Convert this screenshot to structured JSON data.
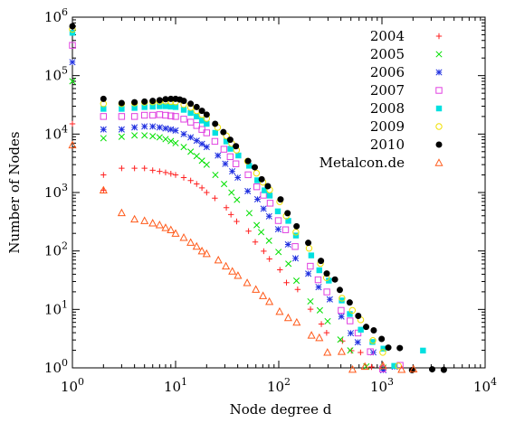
{
  "chart_data": {
    "type": "scatter",
    "title": "",
    "xlabel": "Node degree d",
    "ylabel": "Number of Nodes",
    "xscale": "log",
    "yscale": "log",
    "xlim": [
      1,
      10000
    ],
    "ylim": [
      1,
      1000000
    ],
    "x_ticks": [
      {
        "base": "10",
        "exp": "0"
      },
      {
        "base": "10",
        "exp": "1"
      },
      {
        "base": "10",
        "exp": "2"
      },
      {
        "base": "10",
        "exp": "3"
      },
      {
        "base": "10",
        "exp": "4"
      }
    ],
    "y_ticks": [
      {
        "base": "10",
        "exp": "0"
      },
      {
        "base": "10",
        "exp": "1"
      },
      {
        "base": "10",
        "exp": "2"
      },
      {
        "base": "10",
        "exp": "3"
      },
      {
        "base": "10",
        "exp": "4"
      },
      {
        "base": "10",
        "exp": "5"
      },
      {
        "base": "10",
        "exp": "6"
      }
    ],
    "legend_position": "top-right",
    "series": [
      {
        "name": "2004",
        "color": "#ff2020",
        "marker": "plus",
        "points": [
          [
            1,
            15000
          ],
          [
            2,
            2000
          ],
          [
            2,
            1100
          ],
          [
            3,
            2600
          ],
          [
            4,
            2600
          ],
          [
            5,
            2600
          ],
          [
            6,
            2400
          ],
          [
            7,
            2300
          ],
          [
            8,
            2200
          ],
          [
            9,
            2100
          ],
          [
            10,
            2000
          ],
          [
            12,
            1800
          ],
          [
            14,
            1600
          ],
          [
            16,
            1400
          ],
          [
            18,
            1200
          ],
          [
            20,
            1000
          ],
          [
            25,
            800
          ],
          [
            30,
            550
          ],
          [
            35,
            420
          ],
          [
            40,
            320
          ],
          [
            50,
            220
          ],
          [
            60,
            150
          ],
          [
            70,
            100
          ],
          [
            80,
            75
          ],
          [
            100,
            45
          ],
          [
            120,
            30
          ],
          [
            150,
            20
          ],
          [
            200,
            10
          ],
          [
            250,
            6
          ],
          [
            300,
            4
          ],
          [
            400,
            3
          ],
          [
            500,
            2
          ],
          [
            600,
            2
          ],
          [
            800,
            1
          ],
          [
            1000,
            1
          ]
        ]
      },
      {
        "name": "2005",
        "color": "#00e000",
        "marker": "cross",
        "points": [
          [
            1,
            80000
          ],
          [
            2,
            8500
          ],
          [
            3,
            9000
          ],
          [
            4,
            9500
          ],
          [
            5,
            9500
          ],
          [
            6,
            9200
          ],
          [
            7,
            8800
          ],
          [
            8,
            8200
          ],
          [
            9,
            7600
          ],
          [
            10,
            7000
          ],
          [
            12,
            6000
          ],
          [
            14,
            5000
          ],
          [
            16,
            4200
          ],
          [
            18,
            3500
          ],
          [
            20,
            3000
          ],
          [
            25,
            2000
          ],
          [
            30,
            1400
          ],
          [
            35,
            1000
          ],
          [
            40,
            750
          ],
          [
            50,
            450
          ],
          [
            60,
            300
          ],
          [
            70,
            200
          ],
          [
            80,
            150
          ],
          [
            100,
            90
          ],
          [
            120,
            55
          ],
          [
            150,
            30
          ],
          [
            200,
            15
          ],
          [
            250,
            9
          ],
          [
            300,
            6
          ],
          [
            400,
            3
          ],
          [
            500,
            2
          ],
          [
            700,
            1
          ],
          [
            1000,
            1
          ]
        ]
      },
      {
        "name": "2006",
        "color": "#2030e0",
        "marker": "star",
        "points": [
          [
            1,
            170000
          ],
          [
            2,
            12000
          ],
          [
            3,
            12000
          ],
          [
            4,
            13000
          ],
          [
            5,
            13500
          ],
          [
            6,
            13500
          ],
          [
            7,
            13000
          ],
          [
            8,
            12500
          ],
          [
            9,
            12000
          ],
          [
            10,
            11500
          ],
          [
            12,
            10000
          ],
          [
            14,
            8800
          ],
          [
            16,
            7700
          ],
          [
            18,
            6800
          ],
          [
            20,
            6000
          ],
          [
            25,
            4300
          ],
          [
            30,
            3100
          ],
          [
            35,
            2300
          ],
          [
            40,
            1800
          ],
          [
            50,
            1100
          ],
          [
            60,
            750
          ],
          [
            70,
            500
          ],
          [
            80,
            380
          ],
          [
            100,
            230
          ],
          [
            120,
            140
          ],
          [
            150,
            80
          ],
          [
            200,
            40
          ],
          [
            250,
            22
          ],
          [
            300,
            14
          ],
          [
            400,
            7
          ],
          [
            500,
            4
          ],
          [
            600,
            3
          ],
          [
            800,
            2
          ],
          [
            1000,
            1
          ],
          [
            1300,
            1
          ]
        ]
      },
      {
        "name": "2007",
        "color": "#e040e0",
        "marker": "square",
        "points": [
          [
            1,
            330000
          ],
          [
            2,
            20000
          ],
          [
            3,
            20000
          ],
          [
            4,
            20000
          ],
          [
            5,
            21000
          ],
          [
            6,
            21000
          ],
          [
            7,
            21500
          ],
          [
            8,
            21000
          ],
          [
            9,
            20500
          ],
          [
            10,
            20000
          ],
          [
            12,
            18000
          ],
          [
            14,
            16000
          ],
          [
            16,
            14000
          ],
          [
            18,
            12000
          ],
          [
            20,
            10500
          ],
          [
            25,
            7500
          ],
          [
            30,
            5500
          ],
          [
            35,
            4100
          ],
          [
            40,
            3100
          ],
          [
            50,
            1900
          ],
          [
            60,
            1250
          ],
          [
            70,
            850
          ],
          [
            80,
            620
          ],
          [
            100,
            360
          ],
          [
            120,
            230
          ],
          [
            150,
            130
          ],
          [
            200,
            60
          ],
          [
            250,
            35
          ],
          [
            300,
            22
          ],
          [
            400,
            10
          ],
          [
            500,
            6
          ],
          [
            600,
            4
          ],
          [
            800,
            2
          ],
          [
            1000,
            1
          ],
          [
            1500,
            1
          ]
        ]
      },
      {
        "name": "2008",
        "color": "#00e0e0",
        "marker": "filled-square",
        "points": [
          [
            1,
            540000
          ],
          [
            2,
            27000
          ],
          [
            3,
            27000
          ],
          [
            4,
            28000
          ],
          [
            5,
            29000
          ],
          [
            6,
            29500
          ],
          [
            7,
            30000
          ],
          [
            8,
            30000
          ],
          [
            9,
            29500
          ],
          [
            10,
            29000
          ],
          [
            12,
            26000
          ],
          [
            14,
            23000
          ],
          [
            16,
            20000
          ],
          [
            18,
            17000
          ],
          [
            20,
            15000
          ],
          [
            25,
            10500
          ],
          [
            30,
            7500
          ],
          [
            35,
            5600
          ],
          [
            40,
            4300
          ],
          [
            50,
            2600
          ],
          [
            60,
            1750
          ],
          [
            70,
            1200
          ],
          [
            80,
            870
          ],
          [
            100,
            500
          ],
          [
            120,
            320
          ],
          [
            150,
            180
          ],
          [
            200,
            85
          ],
          [
            250,
            48
          ],
          [
            300,
            30
          ],
          [
            400,
            14
          ],
          [
            500,
            8
          ],
          [
            600,
            5
          ],
          [
            800,
            3
          ],
          [
            1000,
            2
          ],
          [
            1300,
            1
          ],
          [
            2500,
            2
          ]
        ]
      },
      {
        "name": "2009",
        "color": "#f0e000",
        "marker": "circle",
        "points": [
          [
            1,
            620000
          ],
          [
            2,
            33000
          ],
          [
            3,
            33000
          ],
          [
            4,
            34000
          ],
          [
            5,
            35000
          ],
          [
            6,
            35500
          ],
          [
            7,
            36000
          ],
          [
            8,
            36500
          ],
          [
            9,
            36000
          ],
          [
            10,
            35500
          ],
          [
            12,
            32000
          ],
          [
            14,
            28500
          ],
          [
            16,
            25000
          ],
          [
            18,
            21500
          ],
          [
            20,
            18500
          ],
          [
            25,
            13000
          ],
          [
            30,
            9300
          ],
          [
            35,
            6900
          ],
          [
            40,
            5300
          ],
          [
            50,
            3200
          ],
          [
            60,
            2150
          ],
          [
            70,
            1500
          ],
          [
            80,
            1080
          ],
          [
            100,
            630
          ],
          [
            120,
            400
          ],
          [
            150,
            220
          ],
          [
            200,
            105
          ],
          [
            250,
            60
          ],
          [
            300,
            37
          ],
          [
            400,
            17
          ],
          [
            500,
            10
          ],
          [
            600,
            6
          ],
          [
            800,
            3
          ],
          [
            1000,
            2
          ],
          [
            1500,
            1
          ]
        ]
      },
      {
        "name": "2010",
        "color": "#000000",
        "marker": "filled-circle",
        "points": [
          [
            1,
            700000
          ],
          [
            2,
            40000
          ],
          [
            3,
            34000
          ],
          [
            4,
            35000
          ],
          [
            5,
            36000
          ],
          [
            6,
            37000
          ],
          [
            7,
            38000
          ],
          [
            8,
            39500
          ],
          [
            9,
            40000
          ],
          [
            10,
            40000
          ],
          [
            11,
            39000
          ],
          [
            12,
            37000
          ],
          [
            14,
            33000
          ],
          [
            16,
            29000
          ],
          [
            18,
            25000
          ],
          [
            20,
            21500
          ],
          [
            25,
            15000
          ],
          [
            30,
            10800
          ],
          [
            35,
            8000
          ],
          [
            40,
            6200
          ],
          [
            50,
            3800
          ],
          [
            60,
            2500
          ],
          [
            70,
            1750
          ],
          [
            80,
            1270
          ],
          [
            100,
            750
          ],
          [
            120,
            470
          ],
          [
            150,
            260
          ],
          [
            200,
            130
          ],
          [
            250,
            75
          ],
          [
            300,
            45
          ],
          [
            350,
            30
          ],
          [
            400,
            22
          ],
          [
            500,
            12
          ],
          [
            600,
            8
          ],
          [
            700,
            5
          ],
          [
            800,
            4
          ],
          [
            1000,
            3
          ],
          [
            1200,
            2
          ],
          [
            1500,
            2
          ],
          [
            2000,
            1
          ],
          [
            3000,
            1
          ],
          [
            4000,
            1
          ]
        ]
      },
      {
        "name": "Metalcon.de",
        "color": "#ff5a1a",
        "marker": "triangle",
        "points": [
          [
            1,
            6500
          ],
          [
            2,
            1100
          ],
          [
            3,
            450
          ],
          [
            4,
            350
          ],
          [
            5,
            330
          ],
          [
            6,
            300
          ],
          [
            7,
            280
          ],
          [
            8,
            250
          ],
          [
            9,
            230
          ],
          [
            10,
            200
          ],
          [
            12,
            170
          ],
          [
            14,
            140
          ],
          [
            16,
            120
          ],
          [
            18,
            100
          ],
          [
            20,
            90
          ],
          [
            25,
            70
          ],
          [
            30,
            55
          ],
          [
            35,
            45
          ],
          [
            40,
            38
          ],
          [
            50,
            28
          ],
          [
            60,
            22
          ],
          [
            70,
            18
          ],
          [
            80,
            14
          ],
          [
            100,
            10
          ],
          [
            120,
            8
          ],
          [
            150,
            6
          ],
          [
            200,
            4
          ],
          [
            250,
            3
          ],
          [
            300,
            2
          ],
          [
            400,
            2
          ],
          [
            500,
            1
          ],
          [
            700,
            1
          ],
          [
            1000,
            1
          ],
          [
            1500,
            1
          ],
          [
            2000,
            1
          ]
        ]
      }
    ]
  }
}
